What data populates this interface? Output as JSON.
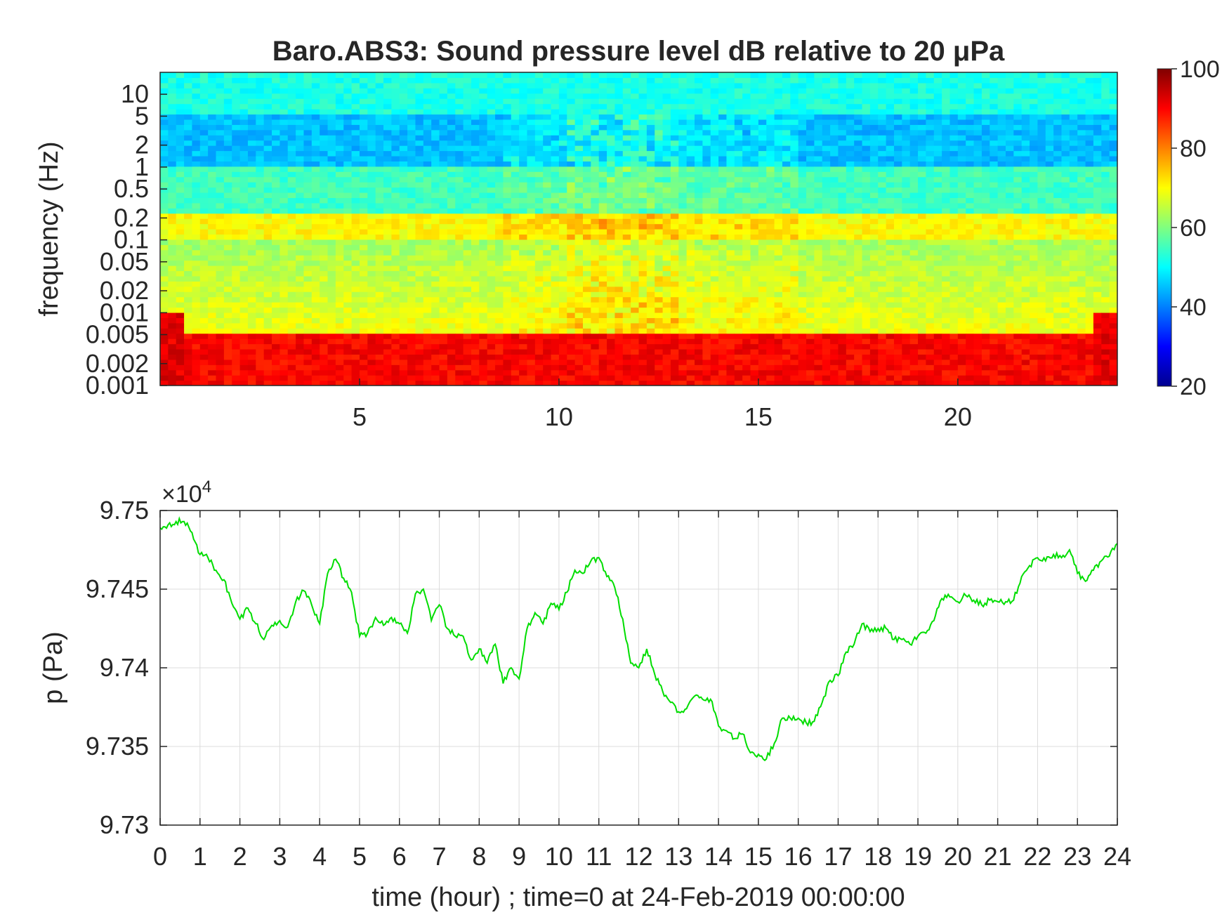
{
  "chart_data": [
    {
      "type": "heatmap",
      "title": "Baro.ABS3: Sound pressure level dB relative to 20 μPa",
      "xlabel": "",
      "ylabel": "frequency (Hz)",
      "x_scale": "linear",
      "y_scale": "log",
      "xlim": [
        0,
        24
      ],
      "ylim": [
        0.001,
        20
      ],
      "x_ticks": [
        "5",
        "10",
        "15",
        "20"
      ],
      "x_tick_values": [
        5,
        10,
        15,
        20
      ],
      "y_ticks": [
        "0.001",
        "0.002",
        "0.005",
        "0.01",
        "0.02",
        "0.05",
        "0.1",
        "0.2",
        "0.5",
        "1",
        "2",
        "5",
        "10"
      ],
      "y_tick_values": [
        0.001,
        0.002,
        0.005,
        0.01,
        0.02,
        0.05,
        0.1,
        0.2,
        0.5,
        1,
        2,
        5,
        10
      ],
      "colorbar": {
        "colormap": "jet",
        "range": [
          20,
          100
        ],
        "ticks": [
          "20",
          "40",
          "60",
          "80",
          "100"
        ],
        "tick_values": [
          20,
          40,
          60,
          80,
          100
        ]
      },
      "bands_db": [
        {
          "freq_range": [
            0.001,
            0.005
          ],
          "level": 90
        },
        {
          "freq_range": [
            0.005,
            0.1
          ],
          "level": 63
        },
        {
          "freq_range": [
            0.1,
            0.25
          ],
          "level": 70
        },
        {
          "freq_range": [
            0.25,
            1
          ],
          "level": 55
        },
        {
          "freq_range": [
            1,
            5
          ],
          "level": 45
        },
        {
          "freq_range": [
            5,
            20
          ],
          "level": 52
        }
      ],
      "active_period_hours": [
        10.3,
        13.0
      ]
    },
    {
      "type": "line",
      "title": "",
      "xlabel": "time (hour) ; time=0 at 24-Feb-2019 00:00:00",
      "ylabel": "p (Pa)",
      "xlim": [
        0,
        24
      ],
      "ylim": [
        97300,
        97500
      ],
      "exponent_label": "×10",
      "exponent_power": "4",
      "grid": true,
      "x_ticks": [
        "0",
        "1",
        "2",
        "3",
        "4",
        "5",
        "6",
        "7",
        "8",
        "9",
        "10",
        "11",
        "12",
        "13",
        "14",
        "15",
        "16",
        "17",
        "18",
        "19",
        "20",
        "21",
        "22",
        "23",
        "24"
      ],
      "x_tick_values": [
        0,
        1,
        2,
        3,
        4,
        5,
        6,
        7,
        8,
        9,
        10,
        11,
        12,
        13,
        14,
        15,
        16,
        17,
        18,
        19,
        20,
        21,
        22,
        23,
        24
      ],
      "y_ticks": [
        "9.73",
        "9.735",
        "9.74",
        "9.745",
        "9.75"
      ],
      "y_tick_values": [
        97300,
        97350,
        97400,
        97450,
        97500
      ],
      "series": [
        {
          "color": "#00dd00",
          "x": [
            0,
            0.2,
            0.4,
            0.6,
            0.8,
            1.0,
            1.2,
            1.4,
            1.6,
            1.8,
            2.0,
            2.2,
            2.4,
            2.6,
            2.8,
            3.0,
            3.2,
            3.4,
            3.6,
            3.8,
            4.0,
            4.2,
            4.4,
            4.6,
            4.8,
            5.0,
            5.2,
            5.4,
            5.6,
            5.8,
            6.0,
            6.2,
            6.4,
            6.6,
            6.8,
            7.0,
            7.2,
            7.4,
            7.6,
            7.8,
            8.0,
            8.2,
            8.4,
            8.6,
            8.8,
            9.0,
            9.2,
            9.4,
            9.6,
            9.8,
            10.0,
            10.2,
            10.4,
            10.6,
            10.8,
            11.0,
            11.2,
            11.4,
            11.6,
            11.8,
            12.0,
            12.2,
            12.4,
            12.6,
            12.8,
            13.0,
            13.2,
            13.4,
            13.6,
            13.8,
            14.0,
            14.2,
            14.4,
            14.6,
            14.8,
            15.0,
            15.2,
            15.4,
            15.6,
            15.8,
            16.0,
            16.2,
            16.4,
            16.6,
            16.8,
            17.0,
            17.2,
            17.4,
            17.6,
            17.8,
            18.0,
            18.2,
            18.4,
            18.6,
            18.8,
            19.0,
            19.2,
            19.4,
            19.6,
            19.8,
            20.0,
            20.2,
            20.4,
            20.6,
            20.8,
            21.0,
            21.2,
            21.4,
            21.6,
            21.8,
            22.0,
            22.2,
            22.4,
            22.6,
            22.8,
            23.0,
            23.2,
            23.4,
            23.6,
            23.8,
            24.0
          ],
          "y": [
            97489,
            97491,
            97493,
            97493,
            97486,
            97472,
            97470,
            97462,
            97456,
            97441,
            97431,
            97438,
            97428,
            97418,
            97427,
            97430,
            97426,
            97442,
            97449,
            97440,
            97428,
            97460,
            97469,
            97457,
            97448,
            97420,
            97422,
            97432,
            97427,
            97432,
            97428,
            97422,
            97447,
            97450,
            97430,
            97440,
            97425,
            97420,
            97420,
            97405,
            97412,
            97403,
            97415,
            97390,
            97400,
            97393,
            97425,
            97435,
            97428,
            97441,
            97437,
            97448,
            97462,
            97460,
            97468,
            97470,
            97458,
            97451,
            97431,
            97403,
            97400,
            97412,
            97396,
            97385,
            97378,
            97372,
            97374,
            97382,
            97380,
            97380,
            97363,
            97360,
            97355,
            97358,
            97346,
            97345,
            97342,
            97352,
            97368,
            97368,
            97368,
            97365,
            97366,
            97378,
            97392,
            97395,
            97410,
            97415,
            97428,
            97423,
            97425,
            97425,
            97418,
            97418,
            97415,
            97420,
            97422,
            97430,
            97444,
            97445,
            97442,
            97446,
            97443,
            97440,
            97443,
            97442,
            97442,
            97443,
            97458,
            97465,
            97470,
            97468,
            97472,
            97470,
            97475,
            97460,
            97455,
            97462,
            97468,
            97471,
            97479
          ]
        }
      ]
    }
  ]
}
